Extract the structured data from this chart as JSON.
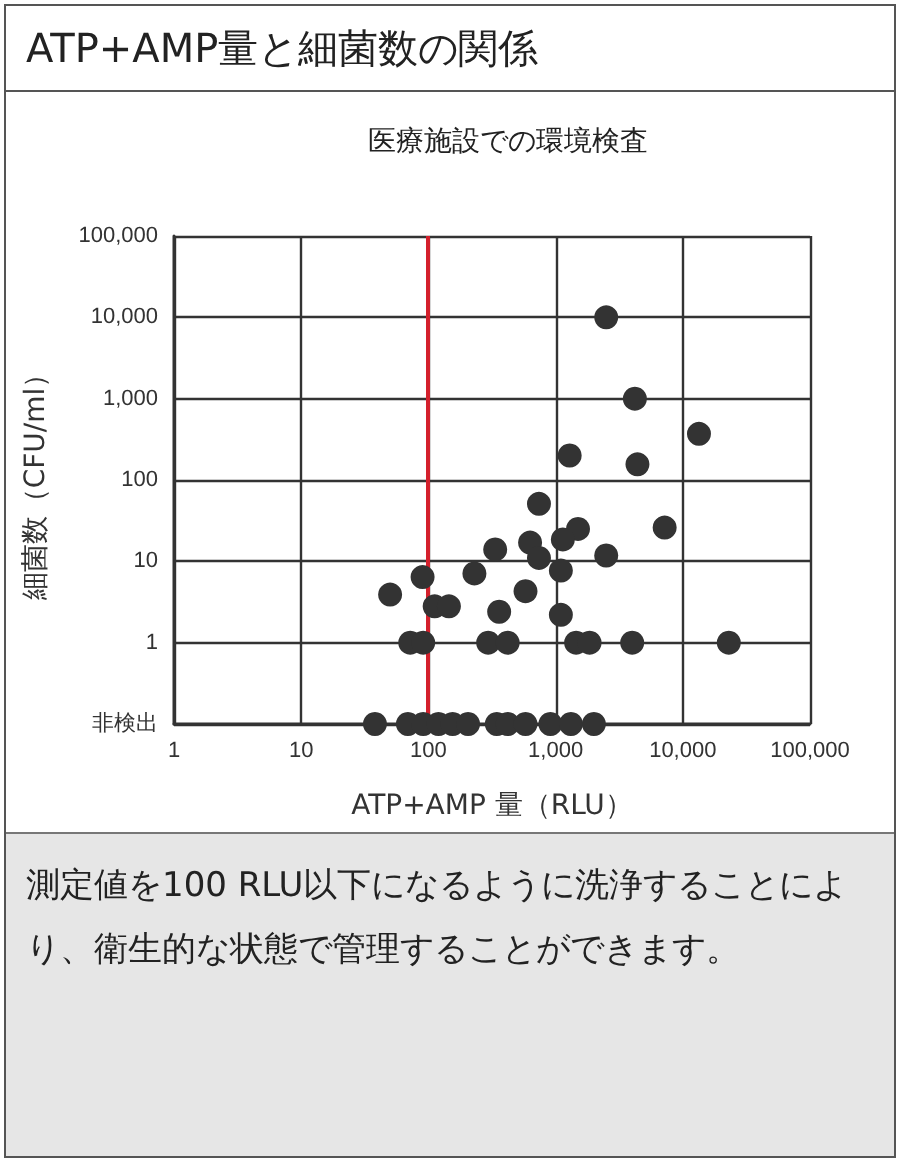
{
  "chart_data": {
    "type": "scatter",
    "title": "ATP+AMP量と細菌数の関係",
    "subtitle": "医療施設での環境検査",
    "xlabel": "ATP+AMP 量（RLU）",
    "ylabel": "細菌数（CFU/ml）",
    "x": [
      2500,
      4200,
      13400,
      1290,
      4400,
      740,
      7200,
      1500,
      1140,
      2500,
      630,
      740,
      335,
      230,
      1100,
      90,
      50,
      580,
      112,
      145,
      360,
      1100,
      72,
      91,
      295,
      420,
      1450,
      1850,
      4000,
      23000,
      38,
      69,
      91,
      120,
      155,
      205,
      345,
      420,
      580,
      910,
      1320,
      2000
    ],
    "series": [
      {
        "color": "#333333",
        "values": [
          10000,
          1000,
          370,
          200,
          156,
          51,
          26,
          25,
          18.6,
          11.8,
          17,
          11,
          14,
          7.1,
          7.7,
          6.4,
          3.9,
          4.3,
          2.8,
          2.8,
          2.4,
          2.2,
          1,
          1,
          1,
          1,
          1,
          1,
          1,
          1,
          0.1,
          0.1,
          0.1,
          0.1,
          0.1,
          0.1,
          0.1,
          0.1,
          0.1,
          0.1,
          0.1,
          0.1
        ]
      }
    ],
    "log": "xy",
    "xlim": [
      1,
      100000
    ],
    "ylim": [
      0.1,
      100000
    ],
    "xticks": [
      1,
      10,
      100,
      {
        "value": 1000,
        "label": "1,000"
      },
      {
        "value": 10000,
        "label": "10,000"
      },
      {
        "value": 100000,
        "label": "100,000"
      }
    ],
    "yticks": [
      {
        "value": 0.1,
        "label": "非検出"
      },
      1,
      10,
      100,
      {
        "value": 1000,
        "label": "1,000"
      },
      {
        "value": 10000,
        "label": "10,000"
      },
      {
        "value": 100000,
        "label": "100,000"
      }
    ],
    "grid": true,
    "marker": "circle",
    "ref_lines": [
      {
        "axis": "x",
        "value": 100,
        "color": "#d4202c"
      }
    ],
    "annotations": [
      "測定値を100 RLU以下になるように洗浄することにより、衛生的な状態で管理することができます。"
    ]
  }
}
